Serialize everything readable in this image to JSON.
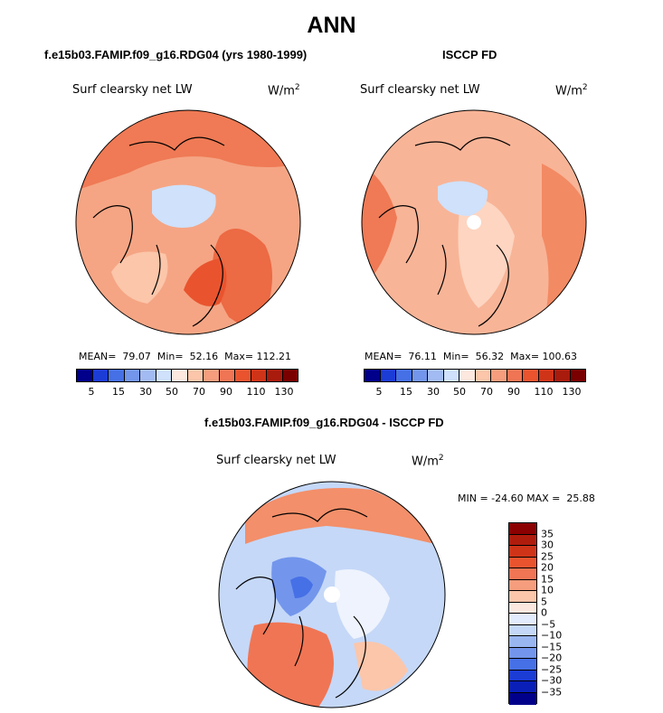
{
  "page_title": "ANN",
  "colors": {
    "scale13": [
      "#00008b",
      "#1c3cd6",
      "#4670e6",
      "#7396ec",
      "#a3bbf3",
      "#cfe1fb",
      "#fde8df",
      "#fbc6aa",
      "#f59d7c",
      "#f07554",
      "#e9542e",
      "#cf3418",
      "#a91b0c",
      "#7a0000"
    ]
  },
  "panels": [
    {
      "case_title": "f.e15b03.FAMIP.f09_g16.RDG04 (yrs 1980-1999)",
      "variable": "Surf clearsky net LW",
      "units": "W/m",
      "units_sup": "2",
      "stats": "MEAN=  79.07  Min=  52.16  Max= 112.21",
      "colorbar_ticks": [
        "5",
        "15",
        "30",
        "50",
        "70",
        "90",
        "110",
        "130"
      ]
    },
    {
      "case_title": "ISCCP FD",
      "variable": "Surf clearsky net LW",
      "units": "W/m",
      "units_sup": "2",
      "stats": "MEAN=  76.11  Min=  56.32  Max= 100.63",
      "colorbar_ticks": [
        "5",
        "15",
        "30",
        "50",
        "70",
        "90",
        "110",
        "130"
      ]
    }
  ],
  "diff_panel": {
    "case_title": "f.e15b03.FAMIP.f09_g16.RDG04 - ISCCP FD",
    "variable": "Surf clearsky net LW",
    "units": "W/m",
    "units_sup": "2",
    "stats": "MIN = -24.60 MAX =  25.88",
    "colorbar_ticks": [
      "35",
      "30",
      "25",
      "20",
      "15",
      "10",
      "5",
      "0",
      "−5",
      "−10",
      "−15",
      "−20",
      "−25",
      "−30",
      "−35"
    ]
  },
  "chart_data": [
    {
      "type": "heatmap",
      "title": "f.e15b03.FAMIP.f09_g16.RDG04 (yrs 1980-1999)",
      "variable": "Surf clearsky net LW",
      "units": "W/m^2",
      "projection": "north-polar-stereographic",
      "mean": 79.07,
      "min": 52.16,
      "max": 112.21,
      "levels": [
        5,
        15,
        30,
        50,
        70,
        90,
        110,
        130
      ]
    },
    {
      "type": "heatmap",
      "title": "ISCCP FD",
      "variable": "Surf clearsky net LW",
      "units": "W/m^2",
      "projection": "north-polar-stereographic",
      "mean": 76.11,
      "min": 56.32,
      "max": 100.63,
      "levels": [
        5,
        15,
        30,
        50,
        70,
        90,
        110,
        130
      ]
    },
    {
      "type": "heatmap",
      "title": "f.e15b03.FAMIP.f09_g16.RDG04 - ISCCP FD",
      "variable": "Surf clearsky net LW",
      "units": "W/m^2",
      "projection": "north-polar-stereographic",
      "min": -24.6,
      "max": 25.88,
      "levels": [
        -35,
        -30,
        -25,
        -20,
        -15,
        -10,
        -5,
        0,
        5,
        10,
        15,
        20,
        25,
        30,
        35
      ]
    }
  ]
}
